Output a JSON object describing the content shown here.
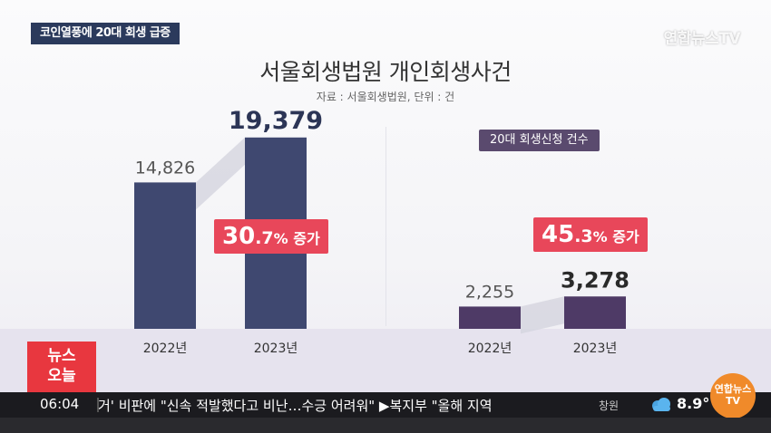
{
  "topic_tag": "코인열풍에 20대 회생 급증",
  "logo": "연합뉴스TV",
  "chart_title": "서울회생법원 개인회생사건",
  "source_note": "자료 : 서울회생법원, 단위 : 건",
  "sub_tag": "20대 회생신청 건수",
  "left_badge": {
    "int": "30",
    "dec": ".7",
    "unit": "%",
    "word": " 증가"
  },
  "right_badge": {
    "int": "45",
    "dec": ".3",
    "unit": "%",
    "word": " 증가"
  },
  "chart_data": [
    {
      "type": "bar",
      "title": "서울회생법원 개인회생사건",
      "categories": [
        "2022년",
        "2023년"
      ],
      "values": [
        14826,
        19379
      ],
      "value_labels": [
        "14,826",
        "19,379"
      ],
      "ylim": [
        0,
        20000
      ],
      "color": "#3f4870",
      "grid": false
    },
    {
      "type": "bar",
      "title": "20대 회생신청 건수",
      "categories": [
        "2022년",
        "2023년"
      ],
      "values": [
        2255,
        3278
      ],
      "value_labels": [
        "2,255",
        "3,278"
      ],
      "ylim": [
        0,
        20000
      ],
      "color": "#4e3a66",
      "grid": false
    }
  ],
  "news_box": {
    "line1": "뉴스",
    "line2": "오늘"
  },
  "ticker": {
    "time": "06:04",
    "headline": "거' 비판에 \"신속 적발했다고 비난…수긍 어려워\"  ▶복지부 \"올해 지역",
    "city": "창원",
    "temp": "8.9°"
  },
  "brand_circle": {
    "line1": "연합뉴스",
    "line2": "TV"
  }
}
